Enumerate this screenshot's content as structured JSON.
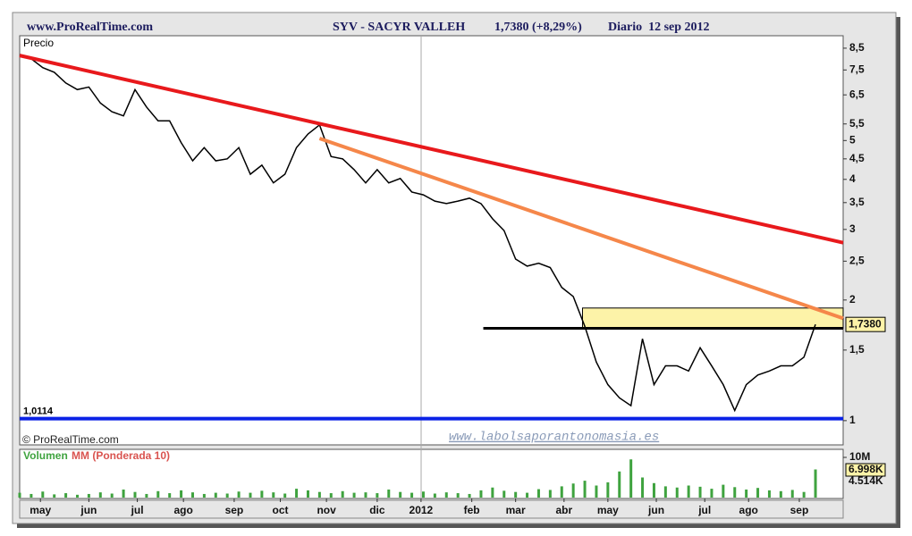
{
  "header": {
    "source": "www.ProRealTime.com",
    "symbol": "SYV - SACYR VALLEH",
    "quote": "1,7380 (+8,29%)",
    "period": "Diario  12 sep 2012",
    "copyright": "© ProRealTime.com",
    "watermark": "www.labolsaporantonomasia.es"
  },
  "chart_data": [
    {
      "type": "line",
      "title": "Precio",
      "log_scale": true,
      "color": "#000000",
      "x": [
        0,
        5,
        10,
        15,
        20,
        25,
        30,
        35,
        40,
        45,
        50,
        55,
        60,
        65,
        70,
        75,
        80,
        85,
        90,
        95,
        100,
        105,
        110,
        115,
        120,
        125,
        130,
        135,
        140,
        145,
        150,
        155,
        160,
        165,
        170,
        175,
        180,
        185,
        190,
        195,
        200,
        205,
        210,
        215,
        220,
        225,
        230,
        235,
        240,
        245,
        250,
        255,
        260,
        265,
        270,
        275,
        280,
        285,
        290,
        295,
        300,
        305,
        310,
        315,
        320,
        325,
        330,
        335,
        340,
        345
      ],
      "values": [
        8.17,
        8.0,
        7.6,
        7.4,
        6.96,
        6.7,
        6.8,
        6.2,
        5.9,
        5.76,
        6.7,
        6.06,
        5.6,
        5.6,
        4.94,
        4.45,
        4.8,
        4.45,
        4.5,
        4.8,
        4.12,
        4.34,
        3.92,
        4.12,
        4.8,
        5.19,
        5.47,
        4.56,
        4.5,
        4.23,
        3.92,
        4.23,
        3.92,
        4.02,
        3.72,
        3.66,
        3.53,
        3.48,
        3.53,
        3.59,
        3.48,
        3.19,
        2.98,
        2.53,
        2.43,
        2.47,
        2.41,
        2.15,
        2.04,
        1.72,
        1.4,
        1.23,
        1.14,
        1.09,
        1.6,
        1.23,
        1.37,
        1.37,
        1.33,
        1.52,
        1.37,
        1.23,
        1.06,
        1.23,
        1.3,
        1.33,
        1.37,
        1.37,
        1.44,
        1.738
      ],
      "value_labels": [
        null,
        null,
        null,
        null,
        null,
        null,
        null,
        null,
        null,
        null,
        null,
        null,
        null,
        null,
        null,
        null,
        null,
        null,
        null,
        null,
        null,
        null,
        null,
        null,
        null,
        null,
        null,
        null,
        null,
        null,
        null,
        null,
        null,
        null,
        null,
        null,
        null,
        null,
        null,
        null,
        null,
        null,
        null,
        null,
        null,
        null,
        null,
        null,
        null,
        null,
        null,
        null,
        null,
        null,
        null,
        null,
        null,
        null,
        null,
        null,
        null,
        null,
        null,
        null,
        null,
        null,
        null,
        null,
        null,
        "1,7380"
      ],
      "xlim": [
        0,
        357
      ],
      "ylim": [
        0.87,
        9.13
      ],
      "xticks": [
        {
          "value": 9,
          "label": "may"
        },
        {
          "value": 30,
          "label": "jun"
        },
        {
          "value": 51,
          "label": "jul"
        },
        {
          "value": 71,
          "label": "ago"
        },
        {
          "value": 93,
          "label": "sep"
        },
        {
          "value": 113,
          "label": "oct"
        },
        {
          "value": 133,
          "label": "nov"
        },
        {
          "value": 155,
          "label": "dic"
        },
        {
          "value": 174,
          "label": "2012"
        },
        {
          "value": 196,
          "label": "feb"
        },
        {
          "value": 215,
          "label": "mar"
        },
        {
          "value": 236,
          "label": "abr"
        },
        {
          "value": 255,
          "label": "may"
        },
        {
          "value": 276,
          "label": "jun"
        },
        {
          "value": 297,
          "label": "jul"
        },
        {
          "value": 316,
          "label": "ago"
        },
        {
          "value": 338,
          "label": "sep"
        }
      ],
      "yticks": [
        {
          "value": 8.5,
          "label": "8,5"
        },
        {
          "value": 7.5,
          "label": "7,5"
        },
        {
          "value": 6.5,
          "label": "6,5"
        },
        {
          "value": 5.5,
          "label": "5,5"
        },
        5,
        {
          "value": 4.5,
          "label": "4,5"
        },
        4,
        {
          "value": 3.5,
          "label": "3,5"
        },
        3,
        {
          "value": 2.5,
          "label": "2,5"
        },
        2,
        {
          "value": 1.5,
          "label": "1,5"
        },
        1
      ],
      "trend_lines": [
        {
          "color": "#e8191c",
          "x": [
            0,
            357
          ],
          "values": [
            8.15,
            2.78
          ]
        },
        {
          "color": "#f5874a",
          "x": [
            130,
            357
          ],
          "values": [
            5.06,
            1.8
          ]
        },
        {
          "color": "#000000",
          "x": [
            201,
            357
          ],
          "values": [
            1.7,
            1.7
          ]
        }
      ],
      "band": {
        "color": "#fdf3a8",
        "x": [
          244,
          357
        ],
        "values": [
          1.7,
          1.91
        ]
      },
      "support": {
        "color": "#0a22e6",
        "value": 1.0114,
        "label": "1,0114"
      }
    },
    {
      "type": "bar",
      "title": "Volumen",
      "subtitle": "MM (Ponderada 10)",
      "color": "#3fa33f",
      "x": [
        0,
        5,
        10,
        15,
        20,
        25,
        30,
        35,
        40,
        45,
        50,
        55,
        60,
        65,
        70,
        75,
        80,
        85,
        90,
        95,
        100,
        105,
        110,
        115,
        120,
        125,
        130,
        135,
        140,
        145,
        150,
        155,
        160,
        165,
        170,
        175,
        180,
        185,
        190,
        195,
        200,
        205,
        210,
        215,
        220,
        225,
        230,
        235,
        240,
        245,
        250,
        255,
        260,
        265,
        270,
        275,
        280,
        285,
        290,
        295,
        300,
        305,
        310,
        315,
        320,
        325,
        330,
        335,
        340,
        345
      ],
      "values": [
        1200,
        900,
        1500,
        800,
        1100,
        700,
        900,
        1300,
        1000,
        2000,
        1400,
        900,
        1600,
        1100,
        1800,
        1300,
        900,
        1200,
        1000,
        1500,
        1200,
        1700,
        1300,
        1000,
        2200,
        1800,
        1400,
        1100,
        1600,
        1200,
        1300,
        1100,
        2000,
        1400,
        1200,
        1500,
        1000,
        1300,
        1100,
        900,
        1800,
        2500,
        1700,
        1400,
        1200,
        2100,
        1900,
        2800,
        3500,
        4200,
        3000,
        3800,
        6500,
        9500,
        5000,
        3600,
        2800,
        2500,
        3000,
        2700,
        2200,
        3200,
        2600,
        2000,
        2400,
        1800,
        1600,
        1900,
        1400,
        6998
      ],
      "xlim": [
        0,
        357
      ],
      "ylim": [
        0,
        12000
      ],
      "yticks": [
        {
          "value": 10000,
          "label": "10M"
        }
      ],
      "last_label": "6.998K",
      "average_label": "4.514K"
    }
  ]
}
